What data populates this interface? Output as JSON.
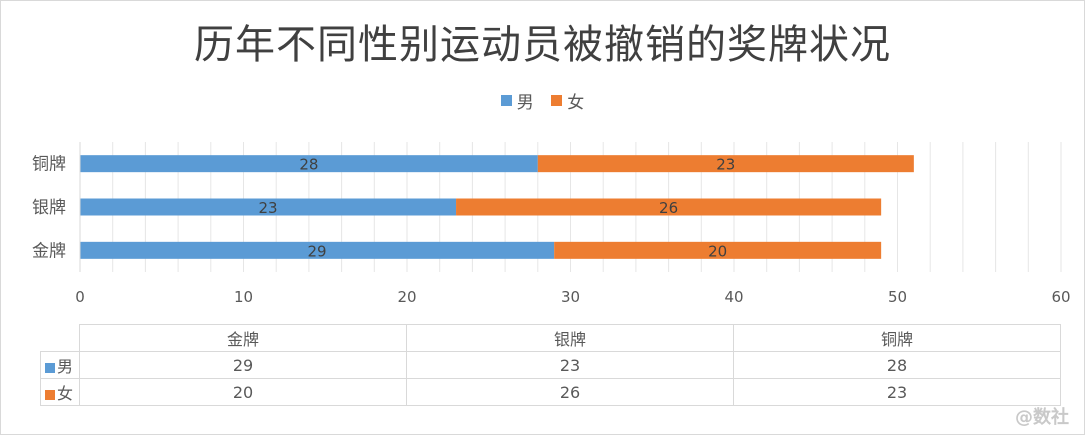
{
  "chart_data": {
    "type": "bar",
    "orientation": "horizontal",
    "stacked": true,
    "title": "历年不同性别运动员被撤销的奖牌状况",
    "categories": [
      "金牌",
      "银牌",
      "铜牌"
    ],
    "series": [
      {
        "name": "男",
        "color": "#5b9bd5",
        "values": [
          29,
          23,
          28
        ]
      },
      {
        "name": "女",
        "color": "#ed7d31",
        "values": [
          20,
          26,
          23
        ]
      }
    ],
    "xlim": [
      0,
      60
    ],
    "xticks": [
      "0",
      "10",
      "20",
      "30",
      "40",
      "50",
      "60"
    ],
    "grid": true,
    "legend_position": "top",
    "data_table": true
  },
  "watermark": "@数社"
}
